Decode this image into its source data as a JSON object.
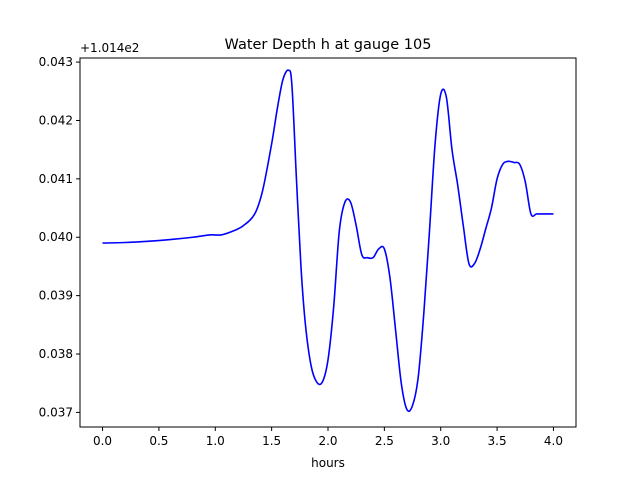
{
  "chart_data": {
    "type": "line",
    "title": "Water Depth h at gauge 105",
    "xlabel": "hours",
    "ylabel": "",
    "y_offset_label": "+1.014e2",
    "xlim": [
      -0.2,
      4.2
    ],
    "ylim": [
      0.03675,
      0.04307
    ],
    "x_ticks": [
      0.0,
      0.5,
      1.0,
      1.5,
      2.0,
      2.5,
      3.0,
      3.5,
      4.0
    ],
    "x_tick_labels": [
      "0.0",
      "0.5",
      "1.0",
      "1.5",
      "2.0",
      "2.5",
      "3.0",
      "3.5",
      "4.0"
    ],
    "y_ticks": [
      0.037,
      0.038,
      0.039,
      0.04,
      0.041,
      0.042,
      0.043
    ],
    "y_tick_labels": [
      "0.037",
      "0.038",
      "0.039",
      "0.040",
      "0.041",
      "0.042",
      "0.043"
    ],
    "grid": false,
    "line_color": "#0000ff",
    "series": [
      {
        "x": [
          0.0,
          0.2,
          0.4,
          0.6,
          0.8,
          0.95,
          1.05,
          1.15,
          1.25,
          1.35,
          1.42,
          1.5,
          1.55,
          1.6,
          1.65,
          1.68,
          1.72,
          1.76,
          1.8,
          1.85,
          1.9,
          1.95,
          2.0,
          2.05,
          2.1,
          2.15,
          2.2,
          2.25,
          2.3,
          2.35,
          2.4,
          2.45,
          2.5,
          2.55,
          2.6,
          2.65,
          2.7,
          2.75,
          2.8,
          2.85,
          2.9,
          2.95,
          3.0,
          3.05,
          3.1,
          3.15,
          3.2,
          3.25,
          3.3,
          3.35,
          3.4,
          3.45,
          3.5,
          3.55,
          3.6,
          3.65,
          3.7,
          3.75,
          3.8,
          3.85,
          3.9,
          3.95,
          4.0
        ],
        "y": [
          0.0399,
          0.03991,
          0.03993,
          0.03996,
          0.04,
          0.04004,
          0.04004,
          0.0401,
          0.0402,
          0.0404,
          0.0408,
          0.0416,
          0.0422,
          0.0427,
          0.04286,
          0.0426,
          0.041,
          0.0395,
          0.0385,
          0.0378,
          0.03752,
          0.03752,
          0.0379,
          0.0388,
          0.0401,
          0.0406,
          0.0406,
          0.0402,
          0.0397,
          0.03965,
          0.03965,
          0.0398,
          0.0398,
          0.0393,
          0.0384,
          0.0375,
          0.03705,
          0.03712,
          0.0376,
          0.0387,
          0.0401,
          0.0416,
          0.04245,
          0.0424,
          0.0415,
          0.0409,
          0.0402,
          0.03955,
          0.03955,
          0.0398,
          0.04015,
          0.0405,
          0.041,
          0.04125,
          0.0413,
          0.04128,
          0.04125,
          0.04095,
          0.0404,
          0.0404,
          0.0404,
          0.0404,
          0.0404
        ]
      }
    ]
  }
}
